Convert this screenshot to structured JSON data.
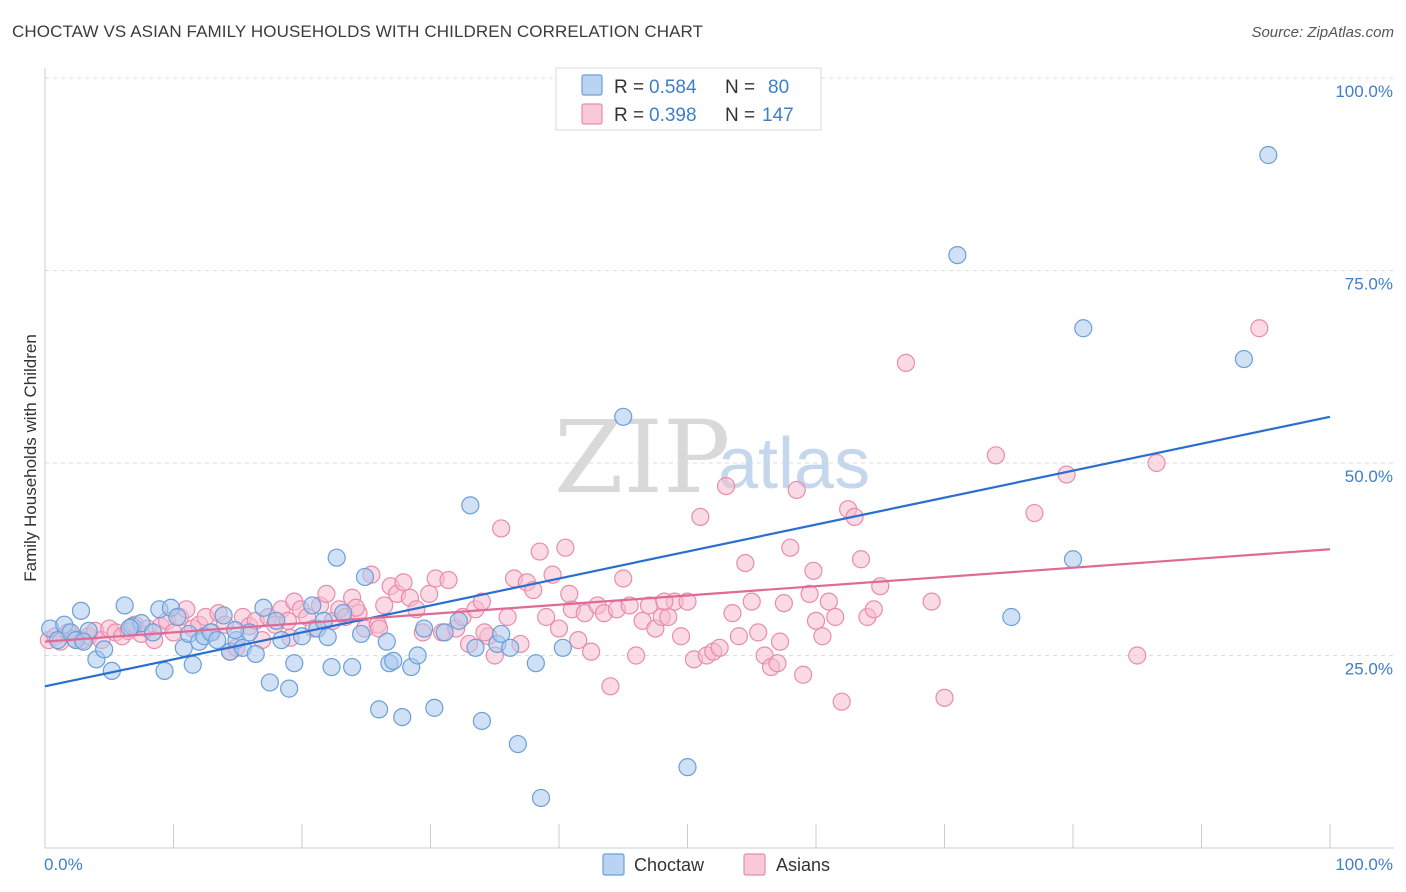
{
  "title": "CHOCTAW VS ASIAN FAMILY HOUSEHOLDS WITH CHILDREN CORRELATION CHART",
  "source": "Source: ZipAtlas.com",
  "watermark": {
    "zip": "ZIP",
    "atlas": "atlas"
  },
  "colors": {
    "choctaw_fill": "#a9c8ee",
    "choctaw_stroke": "#6b9fd8",
    "choctaw_line": "#2a6fce",
    "asians_fill": "#f5bcd0",
    "asians_stroke": "#e98cab",
    "asians_line": "#e06a95",
    "grid": "#dddddd",
    "axis_label": "#3f7ec9"
  },
  "legend": {
    "r_label": "R =",
    "n_label": "N =",
    "rows": [
      {
        "series": "Choctaw",
        "r": "0.584",
        "n": "80"
      },
      {
        "series": "Asians",
        "r": "0.398",
        "n": "147"
      }
    ]
  },
  "chart_data": {
    "type": "scatter",
    "title": "CHOCTAW VS ASIAN FAMILY HOUSEHOLDS WITH CHILDREN CORRELATION CHART",
    "xlabel": "",
    "ylabel": "Family Households with Children",
    "xlim": [
      0,
      100
    ],
    "ylim": [
      0,
      100
    ],
    "x_tick_labels": [
      "0.0%",
      "100.0%"
    ],
    "y_ticks": [
      25,
      50,
      75,
      100
    ],
    "y_tick_labels": [
      "25.0%",
      "50.0%",
      "75.0%",
      "100.0%"
    ],
    "legend_position": "bottom-center",
    "series": [
      {
        "name": "Choctaw",
        "r": 0.584,
        "n": 80,
        "trend": {
          "x": [
            0,
            100
          ],
          "y": [
            21.0,
            56.0
          ]
        },
        "points": [
          [
            0.4,
            28.5
          ],
          [
            1.0,
            27.0
          ],
          [
            1.5,
            29.0
          ],
          [
            2.0,
            28.0
          ],
          [
            2.4,
            27.0
          ],
          [
            2.8,
            30.8
          ],
          [
            3.4,
            28.2
          ],
          [
            4.0,
            24.5
          ],
          [
            4.6,
            25.8
          ],
          [
            5.2,
            23.0
          ],
          [
            6.2,
            31.5
          ],
          [
            6.8,
            28.8
          ],
          [
            7.5,
            29.2
          ],
          [
            8.4,
            28.0
          ],
          [
            8.9,
            31.0
          ],
          [
            9.3,
            23.0
          ],
          [
            9.8,
            31.2
          ],
          [
            10.3,
            30.0
          ],
          [
            10.8,
            26.0
          ],
          [
            11.2,
            27.8
          ],
          [
            11.5,
            23.8
          ],
          [
            12.0,
            26.8
          ],
          [
            12.4,
            27.5
          ],
          [
            12.9,
            28.0
          ],
          [
            13.4,
            27.0
          ],
          [
            13.9,
            30.2
          ],
          [
            14.4,
            25.5
          ],
          [
            14.9,
            27.0
          ],
          [
            15.4,
            26.0
          ],
          [
            15.9,
            28.0
          ],
          [
            16.4,
            25.2
          ],
          [
            17.0,
            31.2
          ],
          [
            17.5,
            21.5
          ],
          [
            18.0,
            29.5
          ],
          [
            18.4,
            27.0
          ],
          [
            19.0,
            20.7
          ],
          [
            19.4,
            24.0
          ],
          [
            20.0,
            27.5
          ],
          [
            20.8,
            31.5
          ],
          [
            21.2,
            28.5
          ],
          [
            21.7,
            29.5
          ],
          [
            22.3,
            23.5
          ],
          [
            22.7,
            37.7
          ],
          [
            23.2,
            30.5
          ],
          [
            23.9,
            23.5
          ],
          [
            24.9,
            35.2
          ],
          [
            26.0,
            18.0
          ],
          [
            26.8,
            24.0
          ],
          [
            26.6,
            26.8
          ],
          [
            27.1,
            24.3
          ],
          [
            27.8,
            17.0
          ],
          [
            28.5,
            23.5
          ],
          [
            29.0,
            25.0
          ],
          [
            29.5,
            28.5
          ],
          [
            30.3,
            18.2
          ],
          [
            31.1,
            28.0
          ],
          [
            32.2,
            29.5
          ],
          [
            33.1,
            44.5
          ],
          [
            34.0,
            16.5
          ],
          [
            35.2,
            26.5
          ],
          [
            35.5,
            27.8
          ],
          [
            36.2,
            26.0
          ],
          [
            36.8,
            13.5
          ],
          [
            38.2,
            24.0
          ],
          [
            38.6,
            6.5
          ],
          [
            40.3,
            26.0
          ],
          [
            45.0,
            56.0
          ],
          [
            50.0,
            10.5
          ],
          [
            71.0,
            77.0
          ],
          [
            75.2,
            30.0
          ],
          [
            80.0,
            37.5
          ],
          [
            80.8,
            67.5
          ],
          [
            93.3,
            63.5
          ],
          [
            95.2,
            90.0
          ],
          [
            3.0,
            26.8
          ],
          [
            14.8,
            28.3
          ],
          [
            22.0,
            27.4
          ],
          [
            6.6,
            28.6
          ],
          [
            33.5,
            26.0
          ],
          [
            24.6,
            27.8
          ]
        ]
      },
      {
        "name": "Asians",
        "r": 0.398,
        "n": 147,
        "trend": {
          "x": [
            0,
            100
          ],
          "y": [
            26.8,
            38.8
          ]
        },
        "points": [
          [
            0.3,
            27.0
          ],
          [
            0.8,
            27.5
          ],
          [
            1.2,
            26.8
          ],
          [
            1.8,
            28.0
          ],
          [
            2.3,
            27.2
          ],
          [
            2.9,
            27.0
          ],
          [
            3.4,
            27.5
          ],
          [
            3.9,
            28.2
          ],
          [
            4.4,
            27.0
          ],
          [
            5.0,
            28.5
          ],
          [
            5.5,
            28.0
          ],
          [
            6.0,
            27.5
          ],
          [
            6.5,
            28.2
          ],
          [
            7.0,
            29.0
          ],
          [
            7.5,
            27.8
          ],
          [
            8.0,
            28.5
          ],
          [
            8.5,
            27.0
          ],
          [
            9.0,
            28.8
          ],
          [
            9.5,
            29.5
          ],
          [
            10.0,
            28.0
          ],
          [
            10.5,
            30.0
          ],
          [
            11.0,
            31.0
          ],
          [
            11.5,
            28.5
          ],
          [
            12.0,
            29.0
          ],
          [
            12.5,
            30.0
          ],
          [
            13.0,
            28.0
          ],
          [
            13.5,
            30.5
          ],
          [
            14.0,
            29.0
          ],
          [
            14.4,
            25.5
          ],
          [
            14.9,
            26.0
          ],
          [
            15.4,
            30.0
          ],
          [
            15.9,
            28.8
          ],
          [
            16.4,
            29.5
          ],
          [
            16.9,
            27.0
          ],
          [
            17.4,
            30.0
          ],
          [
            17.9,
            29.0
          ],
          [
            18.4,
            31.0
          ],
          [
            18.9,
            29.5
          ],
          [
            19.4,
            32.0
          ],
          [
            19.9,
            31.0
          ],
          [
            20.4,
            30.0
          ],
          [
            20.9,
            28.5
          ],
          [
            21.4,
            31.5
          ],
          [
            21.9,
            33.0
          ],
          [
            22.4,
            29.5
          ],
          [
            22.9,
            31.0
          ],
          [
            23.4,
            30.0
          ],
          [
            23.9,
            32.5
          ],
          [
            24.4,
            30.5
          ],
          [
            24.9,
            28.5
          ],
          [
            25.4,
            35.5
          ],
          [
            25.9,
            29.0
          ],
          [
            26.4,
            31.5
          ],
          [
            26.9,
            34.0
          ],
          [
            27.4,
            33.0
          ],
          [
            27.9,
            34.5
          ],
          [
            28.4,
            32.5
          ],
          [
            28.9,
            31.0
          ],
          [
            29.4,
            28.0
          ],
          [
            29.9,
            33.0
          ],
          [
            30.4,
            35.0
          ],
          [
            30.9,
            28.0
          ],
          [
            31.4,
            34.8
          ],
          [
            32.0,
            28.5
          ],
          [
            32.5,
            30.0
          ],
          [
            33.0,
            26.5
          ],
          [
            33.5,
            31.0
          ],
          [
            34.0,
            32.0
          ],
          [
            34.5,
            27.5
          ],
          [
            35.0,
            25.0
          ],
          [
            35.5,
            41.5
          ],
          [
            36.0,
            30.0
          ],
          [
            36.5,
            35.0
          ],
          [
            37.0,
            26.5
          ],
          [
            37.5,
            34.5
          ],
          [
            38.0,
            33.5
          ],
          [
            38.5,
            38.5
          ],
          [
            39.0,
            30.0
          ],
          [
            39.5,
            35.5
          ],
          [
            40.0,
            28.5
          ],
          [
            40.5,
            39.0
          ],
          [
            41.0,
            31.0
          ],
          [
            41.5,
            27.0
          ],
          [
            42.0,
            30.5
          ],
          [
            42.5,
            25.5
          ],
          [
            43.0,
            31.5
          ],
          [
            43.5,
            30.5
          ],
          [
            44.0,
            21.0
          ],
          [
            44.5,
            31.0
          ],
          [
            45.0,
            35.0
          ],
          [
            45.5,
            31.5
          ],
          [
            46.0,
            25.0
          ],
          [
            46.5,
            29.5
          ],
          [
            47.0,
            31.5
          ],
          [
            47.5,
            28.5
          ],
          [
            48.0,
            30.0
          ],
          [
            48.5,
            30.0
          ],
          [
            49.0,
            32.0
          ],
          [
            49.5,
            27.5
          ],
          [
            50.0,
            32.0
          ],
          [
            50.5,
            24.5
          ],
          [
            51.0,
            43.0
          ],
          [
            51.5,
            25.0
          ],
          [
            52.0,
            25.5
          ],
          [
            52.5,
            26.0
          ],
          [
            53.0,
            47.0
          ],
          [
            53.5,
            30.5
          ],
          [
            54.0,
            27.5
          ],
          [
            54.5,
            37.0
          ],
          [
            55.0,
            32.0
          ],
          [
            55.5,
            28.0
          ],
          [
            56.0,
            25.0
          ],
          [
            56.5,
            23.5
          ],
          [
            57.0,
            24.0
          ],
          [
            57.5,
            31.8
          ],
          [
            58.0,
            39.0
          ],
          [
            58.5,
            46.5
          ],
          [
            59.0,
            22.5
          ],
          [
            59.5,
            33.0
          ],
          [
            60.0,
            29.5
          ],
          [
            60.5,
            27.5
          ],
          [
            61.0,
            32.0
          ],
          [
            61.5,
            30.0
          ],
          [
            62.0,
            19.0
          ],
          [
            62.5,
            44.0
          ],
          [
            63.0,
            43.0
          ],
          [
            63.5,
            37.5
          ],
          [
            64.0,
            30.0
          ],
          [
            64.5,
            31.0
          ],
          [
            65.0,
            34.0
          ],
          [
            67.0,
            63.0
          ],
          [
            69.0,
            32.0
          ],
          [
            70.0,
            19.5
          ],
          [
            74.0,
            51.0
          ],
          [
            77.0,
            43.5
          ],
          [
            79.5,
            48.5
          ],
          [
            85.0,
            25.0
          ],
          [
            86.5,
            50.0
          ],
          [
            94.5,
            67.5
          ],
          [
            48.2,
            32.0
          ],
          [
            26.0,
            28.5
          ],
          [
            24.2,
            31.2
          ],
          [
            40.8,
            33.0
          ],
          [
            57.2,
            26.8
          ],
          [
            59.8,
            36.0
          ],
          [
            34.2,
            28.0
          ],
          [
            19.1,
            27.3
          ]
        ]
      }
    ]
  }
}
